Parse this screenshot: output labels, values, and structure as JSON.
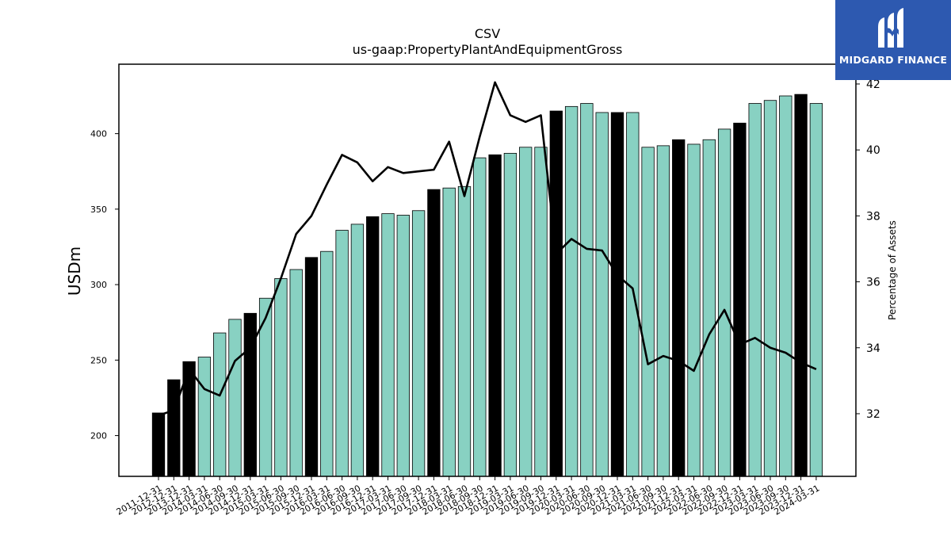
{
  "chart_data": {
    "type": "bar",
    "title": "CSV",
    "subtitle": "us-gaap:PropertyPlantAndEquipmentGross",
    "ylabel": "USDm",
    "y2label": "Percentage of Assets",
    "ylim": [
      173,
      446
    ],
    "y2lim": [
      30.1,
      42.6
    ],
    "yticks": [
      200,
      250,
      300,
      350,
      400
    ],
    "y2ticks": [
      32,
      34,
      36,
      38,
      40,
      42
    ],
    "grid": false,
    "colors": {
      "annual": "#000000",
      "quarterly": "#88d1c2",
      "line": "#000000"
    },
    "categories": [
      "2011-12-31",
      "2012-12-31",
      "2013-12-31",
      "2014-03-31",
      "2014-06-30",
      "2014-09-30",
      "2014-12-31",
      "2015-03-31",
      "2015-06-30",
      "2015-09-30",
      "2015-12-31",
      "2016-03-31",
      "2016-06-30",
      "2016-09-30",
      "2016-12-31",
      "2017-03-31",
      "2017-06-30",
      "2017-09-30",
      "2017-12-31",
      "2018-03-31",
      "2018-06-30",
      "2018-09-30",
      "2018-12-31",
      "2019-03-31",
      "2019-06-30",
      "2019-09-30",
      "2019-12-31",
      "2020-03-31",
      "2020-06-30",
      "2020-09-30",
      "2020-12-31",
      "2021-03-31",
      "2021-06-30",
      "2021-09-30",
      "2021-12-31",
      "2022-03-31",
      "2022-06-30",
      "2022-09-30",
      "2022-12-31",
      "2023-03-31",
      "2023-06-30",
      "2023-09-30",
      "2023-12-31",
      "2024-03-31"
    ],
    "series": [
      {
        "type": "bar",
        "values": [
          215,
          237,
          249,
          252,
          268,
          277,
          281,
          291,
          304,
          310,
          318,
          322,
          336,
          340,
          345,
          347,
          346,
          349,
          363,
          364,
          365,
          384,
          386,
          387,
          391,
          391,
          415,
          418,
          420,
          414,
          414,
          414,
          391,
          392,
          396,
          393,
          396,
          403,
          407,
          420,
          422,
          425,
          426,
          420
        ],
        "period": [
          "annual",
          "annual",
          "annual",
          "quarterly",
          "quarterly",
          "quarterly",
          "annual",
          "quarterly",
          "quarterly",
          "quarterly",
          "annual",
          "quarterly",
          "quarterly",
          "quarterly",
          "annual",
          "quarterly",
          "quarterly",
          "quarterly",
          "annual",
          "quarterly",
          "quarterly",
          "quarterly",
          "annual",
          "quarterly",
          "quarterly",
          "quarterly",
          "annual",
          "quarterly",
          "quarterly",
          "quarterly",
          "annual",
          "quarterly",
          "quarterly",
          "quarterly",
          "annual",
          "quarterly",
          "quarterly",
          "quarterly",
          "annual",
          "quarterly",
          "quarterly",
          "quarterly",
          "annual",
          "quarterly"
        ]
      },
      {
        "type": "line",
        "axis": "right",
        "values": [
          31.95,
          32.1,
          33.35,
          32.75,
          32.55,
          33.6,
          34.0,
          34.9,
          36.1,
          37.45,
          38.0,
          38.95,
          39.85,
          39.62,
          39.05,
          39.48,
          39.3,
          39.35,
          39.4,
          40.25,
          38.6,
          40.4,
          42.05,
          41.05,
          40.85,
          41.05,
          36.85,
          37.3,
          37.0,
          36.95,
          36.2,
          35.8,
          33.5,
          33.75,
          33.6,
          33.3,
          34.4,
          35.15,
          34.1,
          34.3,
          34.0,
          33.85,
          33.55,
          33.35
        ]
      }
    ]
  },
  "logo": {
    "text": "MIDGARD FINANCE"
  }
}
